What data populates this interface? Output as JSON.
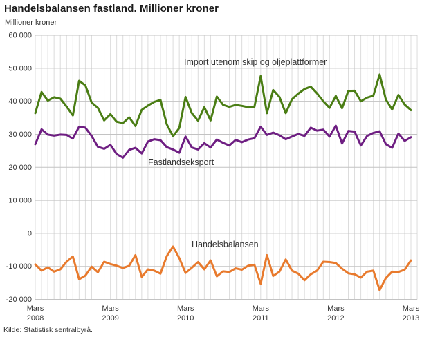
{
  "title": "Handelsbalansen fastland. Millioner kroner",
  "source": "Kilde: Statistisk sentralbyrå.",
  "chart_data": {
    "type": "line",
    "title": "Handelsbalansen fastland. Millioner kroner",
    "y_axis_title": "Millioner kroner",
    "xlabel": "",
    "ylabel": "Millioner kroner",
    "ylim": [
      -20000,
      60000
    ],
    "y_step": 10000,
    "y_tick_labels": [
      "60 000",
      "50 000",
      "40 000",
      "30 000",
      "20 000",
      "10 000",
      "0",
      "-10 000",
      "-20 000"
    ],
    "grid": true,
    "legend_position": "inline-labels",
    "months_total": 61,
    "x_ticks": [
      {
        "month_index": 0,
        "label": "Mars",
        "year": "2008"
      },
      {
        "month_index": 12,
        "label": "Mars",
        "year": "2009"
      },
      {
        "month_index": 24,
        "label": "Mars",
        "year": "2010"
      },
      {
        "month_index": 36,
        "label": "Mars",
        "year": "2011"
      },
      {
        "month_index": 48,
        "label": "Mars",
        "year": "2012"
      },
      {
        "month_index": 60,
        "label": "Mars",
        "year": "2013"
      }
    ],
    "series": [
      {
        "name": "Import utenom skip og oljeplattformer",
        "color": "#4a7d14",
        "values": [
          36400,
          42800,
          40200,
          41200,
          40800,
          38400,
          35700,
          46200,
          44800,
          39600,
          38000,
          34200,
          36100,
          33800,
          33400,
          35100,
          32500,
          37400,
          38700,
          39800,
          40400,
          33000,
          29400,
          31900,
          41300,
          36400,
          34100,
          38200,
          34200,
          41400,
          38900,
          38300,
          38900,
          38600,
          38200,
          38300,
          47600,
          36400,
          43400,
          41300,
          36400,
          40600,
          42300,
          43700,
          44400,
          42400,
          40000,
          38000,
          41600,
          37900,
          43100,
          43200,
          40000,
          41100,
          41700,
          48100,
          40500,
          37500,
          41900,
          39000,
          37300
        ]
      },
      {
        "name": "Fastlandseksport",
        "color": "#6e1e82",
        "values": [
          27000,
          31500,
          29900,
          29600,
          29900,
          29800,
          28700,
          32300,
          32000,
          29500,
          26200,
          25600,
          26800,
          24000,
          22900,
          25300,
          25900,
          24200,
          27800,
          28500,
          28200,
          26100,
          25400,
          24400,
          29300,
          26000,
          25400,
          27300,
          26000,
          28400,
          27400,
          26600,
          28300,
          27600,
          28400,
          28800,
          32300,
          29800,
          30500,
          29700,
          28500,
          29300,
          30100,
          29500,
          32000,
          31100,
          31400,
          29300,
          32600,
          27200,
          31000,
          30800,
          26600,
          29500,
          30400,
          30900,
          27000,
          25900,
          30200,
          28000,
          29100
        ]
      },
      {
        "name": "Handelsbalansen",
        "color": "#e87a2d",
        "values": [
          -9400,
          -11300,
          -10300,
          -11600,
          -10900,
          -8600,
          -7000,
          -13900,
          -12800,
          -10100,
          -11800,
          -8600,
          -9300,
          -9800,
          -10500,
          -9800,
          -6600,
          -13200,
          -10900,
          -11300,
          -12200,
          -6900,
          -4000,
          -7500,
          -12000,
          -10400,
          -8700,
          -10900,
          -8200,
          -13000,
          -11500,
          -11700,
          -10600,
          -11000,
          -9800,
          -9500,
          -15300,
          -6600,
          -12900,
          -11600,
          -7900,
          -11300,
          -12200,
          -14200,
          -12400,
          -11300,
          -8600,
          -8700,
          -9000,
          -10700,
          -12100,
          -12400,
          -13400,
          -11600,
          -11300,
          -17200,
          -13500,
          -11600,
          -11700,
          -11000,
          -8200
        ]
      }
    ],
    "colors": {
      "grid_vertical": "#dcdcdc",
      "grid_horizontal": "#c3c3c3",
      "axis_text": "#333333"
    }
  }
}
